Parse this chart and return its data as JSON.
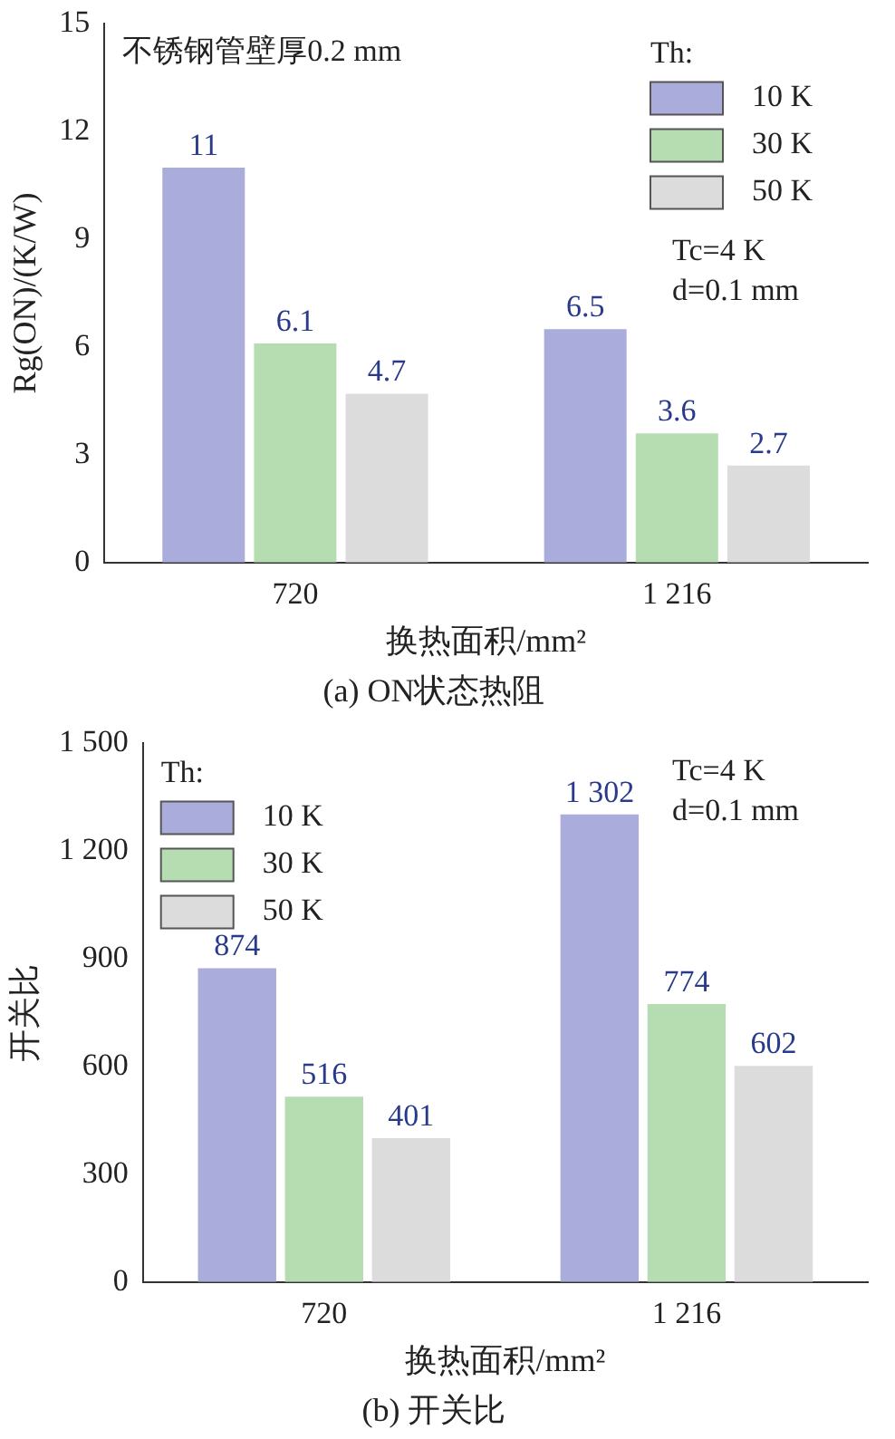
{
  "chart_data": [
    {
      "type": "bar",
      "title": "(a) ON状态热阻",
      "xlabel": "换热面积/mm²",
      "ylabel": "Rg(ON)/(K/W)",
      "legend_title": "Th:",
      "legend": "top right",
      "categories": [
        "720",
        "1 216"
      ],
      "series": [
        {
          "name": "10 K",
          "color": "#aaaddb",
          "values": [
            11,
            6.5
          ]
        },
        {
          "name": "30 K",
          "color": "#b6ddb2",
          "values": [
            6.1,
            3.6
          ]
        },
        {
          "name": "50 K",
          "color": "#dcdcdc",
          "values": [
            4.7,
            2.7
          ]
        }
      ],
      "ylim": [
        0,
        15
      ],
      "yticks": [
        0,
        3,
        6,
        9,
        12,
        15
      ],
      "data_labels": true,
      "annotations": [
        "不锈钢管壁厚0.2 mm",
        "Tc=4 K",
        "d=0.1 mm"
      ]
    },
    {
      "type": "bar",
      "title": "(b) 开关比",
      "xlabel": "换热面积/mm²",
      "ylabel": "开关比",
      "legend_title": "Th:",
      "legend": "top left",
      "categories": [
        "720",
        "1 216"
      ],
      "series": [
        {
          "name": "10 K",
          "color": "#aaaddb",
          "values": [
            874,
            1302
          ],
          "value_labels": [
            "874",
            "1 302"
          ]
        },
        {
          "name": "30 K",
          "color": "#b6ddb2",
          "values": [
            516,
            774
          ],
          "value_labels": [
            "516",
            "774"
          ]
        },
        {
          "name": "50 K",
          "color": "#dcdcdc",
          "values": [
            401,
            602
          ],
          "value_labels": [
            "401",
            "602"
          ]
        }
      ],
      "ylim": [
        0,
        1500
      ],
      "yticks": [
        0,
        300,
        600,
        900,
        {
          "value": 1200,
          "label": "1 200"
        },
        {
          "value": 1500,
          "label": "1 500"
        }
      ],
      "annotations": [
        "Tc=4 K",
        "d=0.1 mm"
      ]
    }
  ]
}
